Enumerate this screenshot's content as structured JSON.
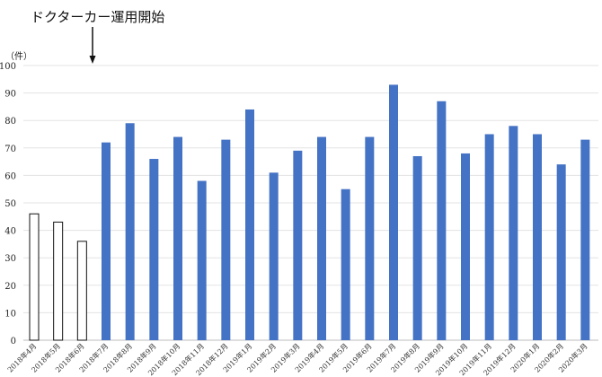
{
  "annotation": "ドクターカー運用開始",
  "unit_label": "（件）",
  "chart_data": {
    "type": "bar",
    "title": "",
    "xlabel": "",
    "ylabel": "（件）",
    "ylim": [
      0,
      100
    ],
    "yticks": [
      0,
      10,
      20,
      30,
      40,
      50,
      60,
      70,
      80,
      90,
      100
    ],
    "grid": true,
    "legend": "none",
    "categories": [
      "2018年4月",
      "2018年5月",
      "2018年6月",
      "2018年7月",
      "2018年8月",
      "2018年9月",
      "2018年10月",
      "2018年11月",
      "2018年12月",
      "2019年1月",
      "2019年2月",
      "2019年3月",
      "2019年4月",
      "2019年5月",
      "2019年6月",
      "2019年7月",
      "2019年8月",
      "2019年9月",
      "2019年10月",
      "2019年11月",
      "2019年12月",
      "2020年1月",
      "2020年2月",
      "2020年3月"
    ],
    "values": [
      46,
      43,
      36,
      72,
      79,
      66,
      74,
      58,
      73,
      84,
      61,
      69,
      74,
      55,
      74,
      93,
      67,
      87,
      68,
      75,
      78,
      75,
      64,
      73
    ],
    "before_start_fill": "#ffffff",
    "after_start_fill": "#4472c4",
    "annotation_category": "2018年7月"
  }
}
